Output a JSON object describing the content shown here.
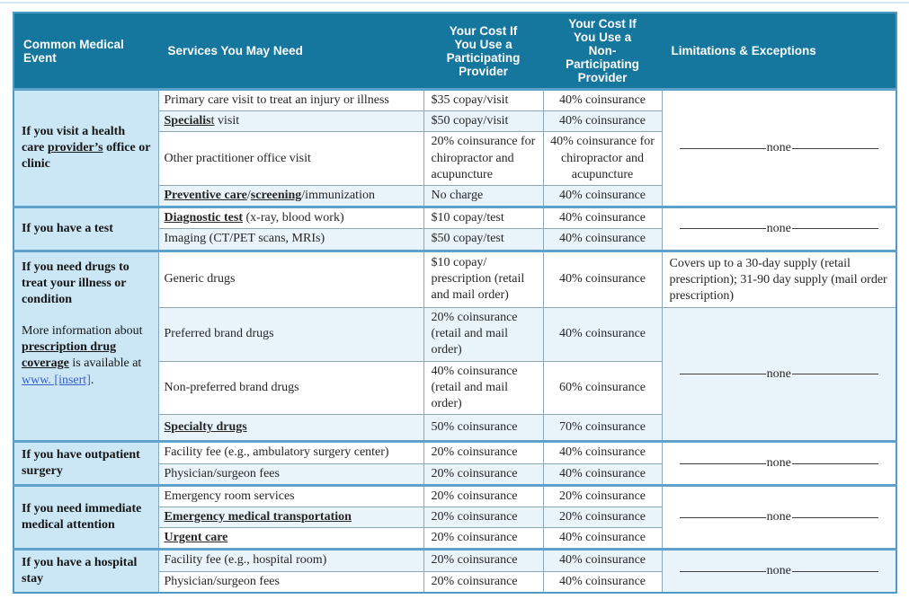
{
  "colors": {
    "header_bg": "#15769e",
    "section_border": "#5ea2cc",
    "outer_border": "#4e9ac6",
    "event_cell_bg": "#cbe6f5",
    "zebra_row_bg": "#e8f3fa",
    "link_color": "#3a5fcd"
  },
  "table": {
    "header": {
      "common_medical_event": "Common Medical Event",
      "services": "Services You May Need",
      "cost_participating": "Your Cost If\nYou Use a\nParticipating\nProvider",
      "cost_non_participating": "Your Cost If\nYou Use a\nNon-\nParticipating\nProvider",
      "limitations": "Limitations & Exceptions"
    },
    "none_label": "none",
    "sections": [
      {
        "event": {
          "pre": "If you visit a health care ",
          "term": "provider’s",
          "post": " office or clinic"
        },
        "rows": [
          {
            "service": "Primary care visit to treat an injury or illness",
            "participating": "$35 copay/visit",
            "non_participating": "40% coinsurance"
          },
          {
            "service_bold": "Specialis",
            "service_underline": "t",
            "service_rest": " visit",
            "participating": "$50 copay/visit",
            "non_participating": "40% coinsurance"
          },
          {
            "service": "Other practitioner office visit",
            "participating": "20% coinsurance for chiropractor and acupuncture",
            "non_participating": "40% coinsurance for chiropractor and acupuncture"
          },
          {
            "service_bold": "Preventive care",
            "service_sep": "/",
            "service_bold2": "screening",
            "service_rest": "/immunization",
            "participating": "No charge",
            "non_participating": "40% coinsurance"
          }
        ]
      },
      {
        "event": {
          "title": "If you have a test"
        },
        "rows": [
          {
            "service_bold": "Diagnostic test",
            "service_rest": " (x-ray, blood work)",
            "participating": "$10 copay/test",
            "non_participating": "40% coinsurance"
          },
          {
            "service": "Imaging (CT/PET scans, MRIs)",
            "participating": "$50 copay/test",
            "non_participating": "40% coinsurance"
          }
        ]
      },
      {
        "event": {
          "title": "If you need drugs to treat your illness or condition",
          "note_pre": "More information about ",
          "note_term": "prescription drug coverage",
          "note_mid": " is available at ",
          "note_link": "www. [insert]",
          "note_post": "."
        },
        "rows": [
          {
            "service": "Generic drugs",
            "participating": "$10 copay/ prescription (retail and mail order)",
            "non_participating": "40% coinsurance",
            "limitation": "Covers up to a 30-day supply (retail prescription); 31-90 day supply (mail order prescription)"
          },
          {
            "service": "Preferred brand drugs",
            "participating": "20% coinsurance (retail and mail order)",
            "non_participating": "40% coinsurance"
          },
          {
            "service": "Non-preferred brand drugs",
            "participating": "40% coinsurance (retail and mail order)",
            "non_participating": "60% coinsurance"
          },
          {
            "service_bold": "Specialty drugs",
            "participating": "50% coinsurance",
            "non_participating": "70% coinsurance"
          }
        ]
      },
      {
        "event": {
          "title": "If you have outpatient surgery"
        },
        "rows": [
          {
            "service": "Facility fee (e.g., ambulatory surgery center)",
            "participating": "20% coinsurance",
            "non_participating": "40% coinsurance"
          },
          {
            "service": "Physician/surgeon fees",
            "participating": "20% coinsurance",
            "non_participating": "40% coinsurance"
          }
        ]
      },
      {
        "event": {
          "title": "If you need immediate medical attention"
        },
        "rows": [
          {
            "service": "Emergency room services",
            "participating": "20% coinsurance",
            "non_participating": "20% coinsurance"
          },
          {
            "service_bold": "Emergency medical transportation",
            "participating": "20% coinsurance",
            "non_participating": "20% coinsurance"
          },
          {
            "service_bold": "Urgent care",
            "participating": "20% coinsurance",
            "non_participating": "40% coinsurance"
          }
        ]
      },
      {
        "event": {
          "title": "If you have a hospital stay"
        },
        "rows": [
          {
            "service": "Facility fee (e.g., hospital room)",
            "participating": "20% coinsurance",
            "non_participating": "40% coinsurance"
          },
          {
            "service": "Physician/surgeon fees",
            "participating": "20% coinsurance",
            "non_participating": "40% coinsurance"
          }
        ]
      }
    ]
  }
}
